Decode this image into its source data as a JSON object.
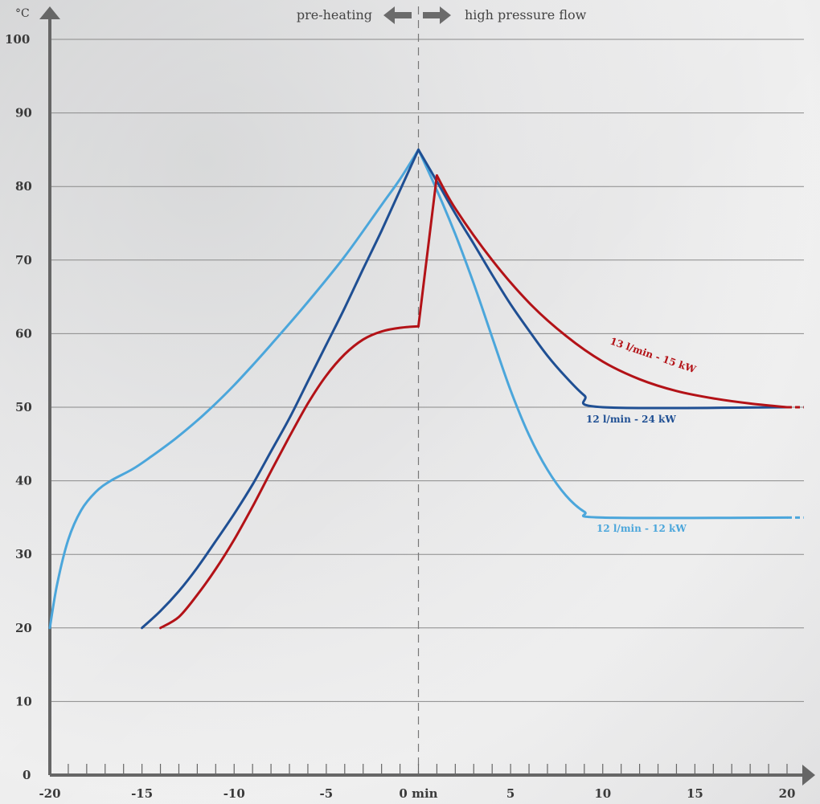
{
  "chart_data": {
    "type": "line",
    "y_unit": "°C",
    "x_ticks": [
      "-20",
      "-15",
      "-10",
      "-5",
      "0 min",
      "5",
      "10",
      "15",
      "20"
    ],
    "y_ticks": [
      "0",
      "10",
      "20",
      "30",
      "40",
      "50",
      "60",
      "70",
      "80",
      "90",
      "100"
    ],
    "xlim": [
      -20,
      20
    ],
    "ylim": [
      0,
      100
    ],
    "grid": true,
    "phase_labels": {
      "left": "pre-heating",
      "right": "high pressure flow"
    },
    "colors": {
      "light_blue": "#4ba6db",
      "dark_blue": "#1f4f93",
      "red": "#b31217"
    },
    "series": [
      {
        "name": "12 l/min - 12 kW",
        "color": "#4ba6db",
        "x": [
          -20,
          -19.6,
          -19,
          -18.3,
          -17.5,
          -16.7,
          -15.5,
          -14.5,
          -13.2,
          -12,
          -11,
          -10,
          -9,
          -8,
          -6,
          -4,
          -2,
          -1,
          0,
          1,
          2,
          3,
          4,
          5,
          6,
          7,
          8,
          9,
          10,
          20
        ],
        "y": [
          20,
          26,
          32,
          36,
          38.5,
          40,
          41.6,
          43.3,
          45.7,
          48.2,
          50.5,
          53,
          55.7,
          58.5,
          64.3,
          70.5,
          77.5,
          81,
          85,
          79.5,
          73.5,
          66.8,
          59.5,
          52.3,
          46.2,
          41.5,
          38,
          35.8,
          35,
          35
        ],
        "dashed_extension": {
          "x": [
            20,
            20.9
          ],
          "y": [
            35,
            35
          ]
        }
      },
      {
        "name": "12 l/min - 24 kW",
        "color": "#1f4f93",
        "x": [
          -15,
          -14,
          -13,
          -12,
          -11,
          -10,
          -9,
          -8,
          -7,
          -6,
          -5,
          -4,
          -3,
          -2,
          -1,
          0,
          1,
          2,
          3,
          4,
          5,
          6,
          7,
          8,
          9,
          10,
          20
        ],
        "y": [
          20,
          22.3,
          25,
          28.2,
          31.8,
          35.5,
          39.5,
          44,
          48.5,
          53.5,
          58.5,
          63.5,
          68.8,
          74,
          79.5,
          85,
          80.7,
          76.3,
          72.2,
          68,
          64,
          60.4,
          57,
          54.1,
          51.6,
          50,
          50
        ],
        "dashed_extension": {
          "x": [
            20,
            20.9
          ],
          "y": [
            50,
            50
          ]
        }
      },
      {
        "name": "13 l/min - 15 kW",
        "color": "#b31217",
        "x": [
          -14,
          -13,
          -12,
          -11,
          -10,
          -9,
          -8,
          -7,
          -6,
          -5,
          -4,
          -3,
          -2,
          -1,
          0,
          1,
          2,
          4,
          6,
          8,
          10,
          12,
          14,
          16,
          18,
          20
        ],
        "y": [
          20,
          21.5,
          24.5,
          28,
          32,
          36.5,
          41.3,
          46,
          50.5,
          54.3,
          57.2,
          59.2,
          60.3,
          60.8,
          61,
          81.5,
          77,
          70,
          64.2,
          59.7,
          56.2,
          53.8,
          52.2,
          51.2,
          50.5,
          50
        ],
        "dashed_extension": {
          "x": [
            20,
            20.9
          ],
          "y": [
            50,
            50
          ]
        }
      }
    ]
  }
}
